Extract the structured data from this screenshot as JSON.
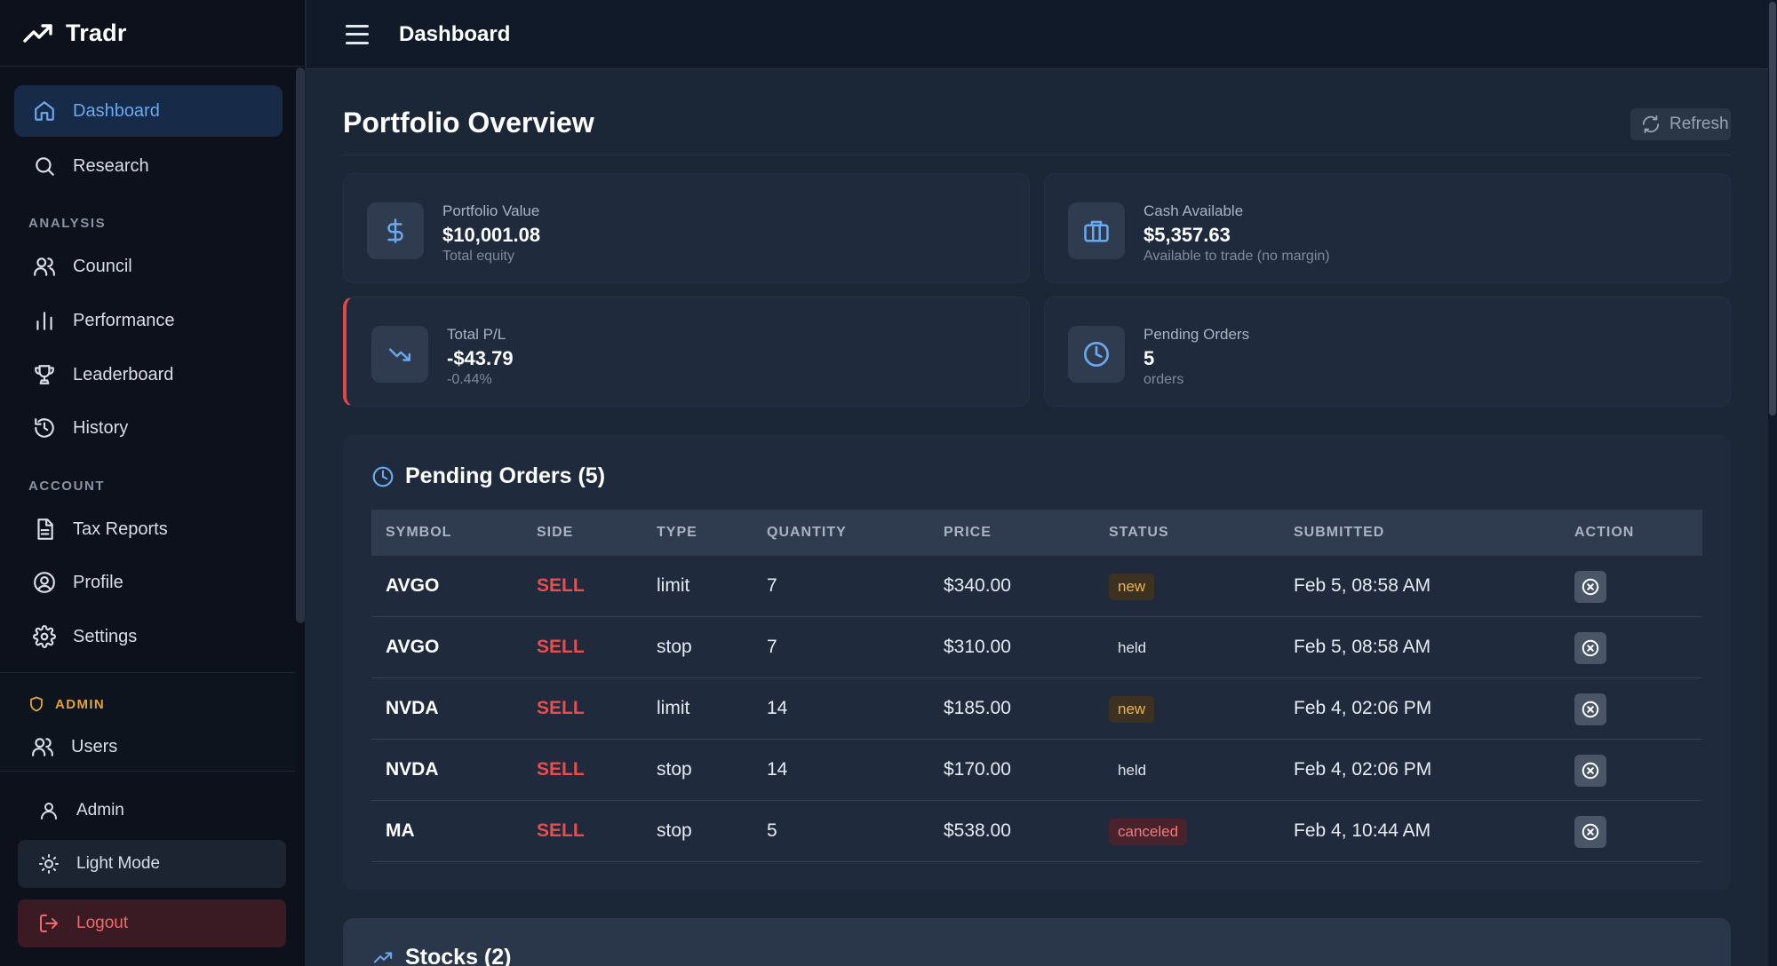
{
  "app": {
    "name": "Tradr"
  },
  "sidebar": {
    "nav": [
      {
        "label": "Dashboard",
        "icon": "home-icon",
        "active": true
      },
      {
        "label": "Research",
        "icon": "search-icon"
      }
    ],
    "analysis_label": "ANALYSIS",
    "analysis": [
      {
        "label": "Council",
        "icon": "users-icon"
      },
      {
        "label": "Performance",
        "icon": "bar-chart-icon"
      },
      {
        "label": "Leaderboard",
        "icon": "trophy-icon"
      },
      {
        "label": "History",
        "icon": "history-icon"
      }
    ],
    "account_label": "ACCOUNT",
    "account": [
      {
        "label": "Tax Reports",
        "icon": "file-text-icon"
      },
      {
        "label": "Profile",
        "icon": "user-circle-icon"
      },
      {
        "label": "Settings",
        "icon": "gear-icon"
      }
    ],
    "admin_label": "ADMIN",
    "admin_items": [
      {
        "label": "Users",
        "icon": "users-icon"
      }
    ],
    "user_name": "Admin",
    "light_mode_label": "Light Mode",
    "logout_label": "Logout"
  },
  "topbar": {
    "title": "Dashboard"
  },
  "main": {
    "title": "Portfolio Overview",
    "refresh_label": "Refresh",
    "cards": {
      "portfolio_value": {
        "label": "Portfolio Value",
        "value": "$10,001.08",
        "sub": "Total equity"
      },
      "cash_available": {
        "label": "Cash Available",
        "value": "$5,357.63",
        "sub": "Available to trade (no margin)"
      },
      "total_pl": {
        "label": "Total P/L",
        "value": "-$43.79",
        "sub": "-0.44%"
      },
      "pending_orders": {
        "label": "Pending Orders",
        "value": "5",
        "sub": "orders"
      }
    },
    "orders": {
      "title": "Pending Orders (5)",
      "columns": [
        "SYMBOL",
        "SIDE",
        "TYPE",
        "QUANTITY",
        "PRICE",
        "STATUS",
        "SUBMITTED",
        "ACTION"
      ],
      "rows": [
        {
          "symbol": "AVGO",
          "side": "SELL",
          "type": "limit",
          "quantity": "7",
          "price": "$340.00",
          "status": "new",
          "submitted": "Feb 5, 08:58 AM"
        },
        {
          "symbol": "AVGO",
          "side": "SELL",
          "type": "stop",
          "quantity": "7",
          "price": "$310.00",
          "status": "held",
          "submitted": "Feb 5, 08:58 AM"
        },
        {
          "symbol": "NVDA",
          "side": "SELL",
          "type": "limit",
          "quantity": "14",
          "price": "$185.00",
          "status": "new",
          "submitted": "Feb 4, 02:06 PM"
        },
        {
          "symbol": "NVDA",
          "side": "SELL",
          "type": "stop",
          "quantity": "14",
          "price": "$170.00",
          "status": "held",
          "submitted": "Feb 4, 02:06 PM"
        },
        {
          "symbol": "MA",
          "side": "SELL",
          "type": "stop",
          "quantity": "5",
          "price": "$538.00",
          "status": "canceled",
          "submitted": "Feb 4, 10:44 AM"
        }
      ]
    },
    "stocks": {
      "title": "Stocks (2)"
    }
  },
  "colors": {
    "accent": "#6aa9ee",
    "sell": "#ea4d4d",
    "admin": "#e3a33a",
    "loss": "#e04848"
  }
}
